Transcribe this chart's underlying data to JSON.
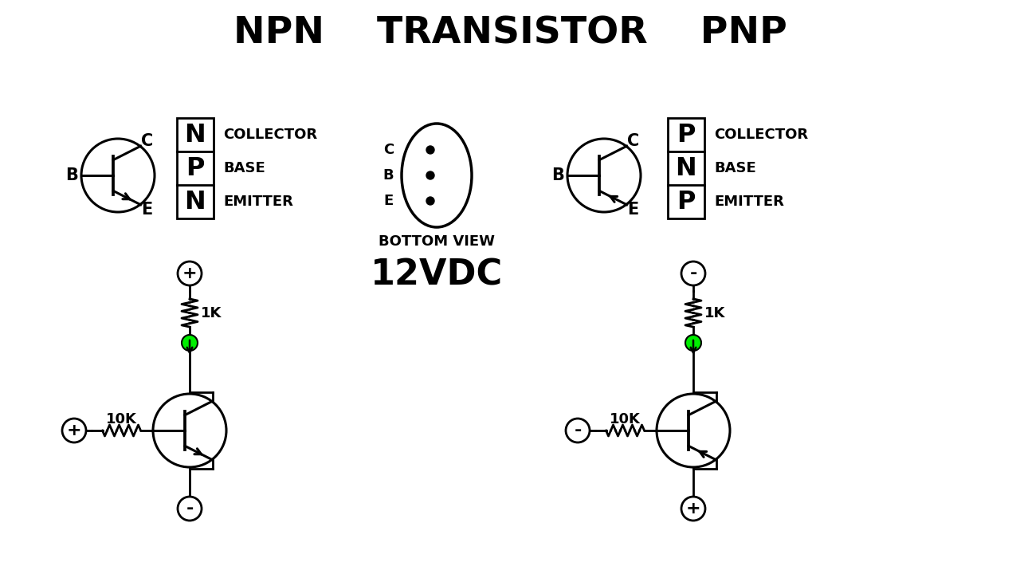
{
  "title": "NPN    TRANSISTOR    PNP",
  "title_fontsize": 34,
  "bg_color": "#ffffff",
  "fg_color": "#000000",
  "green_color": "#00ee00",
  "voltage_label": "12VDC",
  "bottom_view_label": "BOTTOM VIEW",
  "npn_box_letters": [
    "N",
    "P",
    "N"
  ],
  "pnp_box_letters": [
    "P",
    "N",
    "P"
  ],
  "collector_label": "COLLECTOR",
  "base_label": "BASE",
  "emitter_label": "EMITTER",
  "lw_symbol": 2.2,
  "lw_circuit": 2.0,
  "supply_r": 15
}
